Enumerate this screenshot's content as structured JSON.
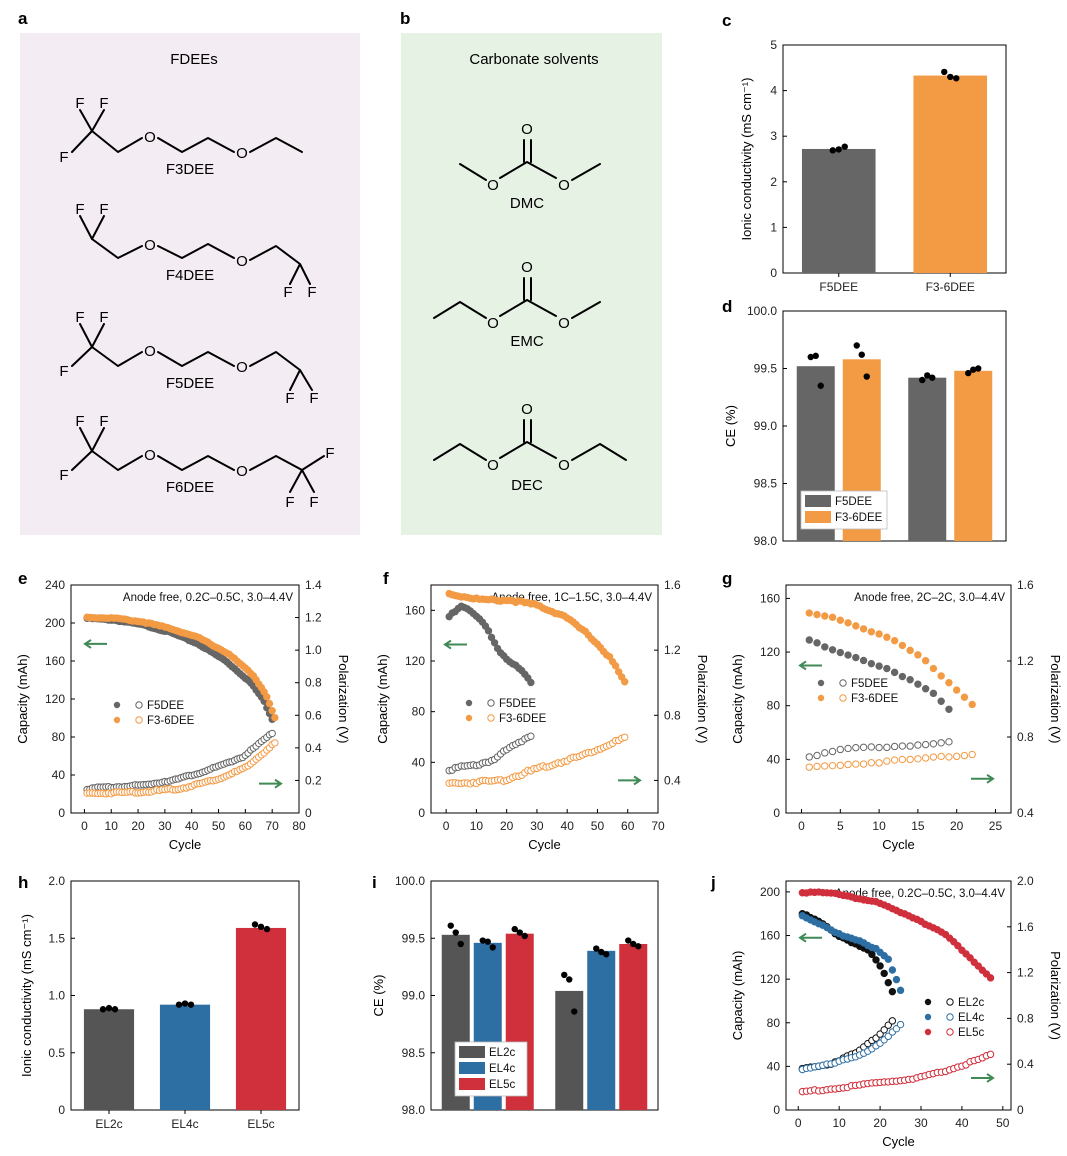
{
  "panels": {
    "a": {
      "letter": "a",
      "title": "FDEEs",
      "molecules": [
        {
          "name": "F3DEE",
          "atoms": [
            "F",
            "F",
            "F",
            "O",
            "O"
          ]
        },
        {
          "name": "F4DEE",
          "atoms": [
            "F",
            "F",
            "O",
            "O",
            "F",
            "F"
          ]
        },
        {
          "name": "F5DEE",
          "atoms": [
            "F",
            "F",
            "F",
            "O",
            "O",
            "F",
            "F"
          ]
        },
        {
          "name": "F6DEE",
          "atoms": [
            "F",
            "F",
            "F",
            "O",
            "O",
            "F",
            "F",
            "F"
          ]
        }
      ]
    },
    "b": {
      "letter": "b",
      "title": "Carbonate solvents",
      "molecules": [
        {
          "name": "DMC",
          "atoms": [
            "O",
            "O",
            "O"
          ]
        },
        {
          "name": "EMC",
          "atoms": [
            "O",
            "O",
            "O"
          ]
        },
        {
          "name": "DEC",
          "atoms": [
            "O",
            "O",
            "O"
          ]
        }
      ]
    }
  },
  "colors": {
    "panel_a_bg": "#f3ecf2",
    "panel_b_bg": "#e6f2e4",
    "gray": "#666666",
    "orange": "#f39a44",
    "blue": "#2e6fa3",
    "red": "#d02f3c",
    "darkgray": "#555555",
    "arrow": "#3f8a55"
  },
  "chart_data": [
    {
      "id": "c",
      "letter": "c",
      "type": "bar",
      "categories": [
        "F5DEE",
        "F3-6DEE"
      ],
      "values": [
        2.72,
        4.33
      ],
      "points": [
        [
          2.69,
          2.71,
          2.77
        ],
        [
          4.41,
          4.3,
          4.27
        ]
      ],
      "ylabel": "Ionic conductivity (mS cm⁻¹)",
      "ylim": [
        0,
        5
      ],
      "yticks": [
        "0",
        "1",
        "2",
        "3",
        "4",
        "5"
      ]
    },
    {
      "id": "d",
      "letter": "d",
      "type": "bar",
      "groups": 2,
      "series": [
        {
          "name": "F5DEE",
          "values": [
            99.52,
            99.42
          ],
          "points": [
            [
              99.6,
              99.61,
              99.35
            ],
            [
              99.4,
              99.44,
              99.42
            ]
          ]
        },
        {
          "name": "F3-6DEE",
          "values": [
            99.58,
            99.48
          ],
          "points": [
            [
              99.7,
              99.62,
              99.43
            ],
            [
              99.46,
              99.49,
              99.5
            ]
          ]
        }
      ],
      "ylabel": "CE (%)",
      "ylim": [
        98.0,
        100.0
      ],
      "yticks": [
        "98.0",
        "98.5",
        "99.0",
        "99.5",
        "100.0"
      ]
    },
    {
      "id": "e",
      "letter": "e",
      "type": "scatter",
      "annotation": "Anode free, 0.2C–0.5C, 3.0–4.4V",
      "xlabel": "Cycle",
      "ylabel": "Capacity (mAh)",
      "y2label": "Polarization (V)",
      "xlim": [
        -5,
        80
      ],
      "ylim": [
        0,
        240
      ],
      "y2lim": [
        0,
        1.4
      ],
      "xticks": [
        "0",
        "10",
        "20",
        "30",
        "40",
        "50",
        "60",
        "70",
        "80"
      ],
      "yticks": [
        "0",
        "40",
        "80",
        "120",
        "160",
        "200",
        "240"
      ],
      "y2ticks": [
        "0",
        "0.2",
        "0.4",
        "0.6",
        "0.8",
        "1.0",
        "1.2",
        "1.4"
      ],
      "legend": [
        "F5DEE",
        "F3-6DEE"
      ],
      "series": [
        {
          "name": "F5DEE capacity",
          "axis": "left",
          "filled": true,
          "x_range": [
            1,
            70
          ],
          "y": [
            [
              0,
              205
            ],
            [
              0.15,
              203
            ],
            [
              0.3,
              198
            ],
            [
              0.45,
              190
            ],
            [
              0.6,
              178
            ],
            [
              0.75,
              160
            ],
            [
              0.88,
              138
            ],
            [
              0.95,
              120
            ],
            [
              1.0,
              99
            ]
          ]
        },
        {
          "name": "F3-6DEE capacity",
          "axis": "left",
          "filled": true,
          "x_range": [
            1,
            71
          ],
          "y": [
            [
              0,
              206
            ],
            [
              0.15,
              205
            ],
            [
              0.3,
              201
            ],
            [
              0.45,
              194
            ],
            [
              0.6,
              184
            ],
            [
              0.75,
              168
            ],
            [
              0.88,
              146
            ],
            [
              0.95,
              126
            ],
            [
              1.0,
              100
            ]
          ]
        },
        {
          "name": "F5DEE polarization",
          "axis": "right",
          "filled": false,
          "x_range": [
            1,
            70
          ],
          "y": [
            [
              0,
              0.15
            ],
            [
              0.3,
              0.17
            ],
            [
              0.5,
              0.21
            ],
            [
              0.7,
              0.28
            ],
            [
              0.85,
              0.35
            ],
            [
              1.0,
              0.49
            ]
          ]
        },
        {
          "name": "F3-6DEE polarization",
          "axis": "right",
          "filled": false,
          "x_range": [
            1,
            71
          ],
          "y": [
            [
              0,
              0.12
            ],
            [
              0.3,
              0.13
            ],
            [
              0.5,
              0.15
            ],
            [
              0.7,
              0.21
            ],
            [
              0.85,
              0.28
            ],
            [
              1.0,
              0.43
            ]
          ]
        }
      ]
    },
    {
      "id": "f",
      "letter": "f",
      "type": "scatter",
      "annotation": "Anode free, 1C–1.5C, 3.0–4.4V",
      "xlabel": "Cycle",
      "ylabel": "Capacity (mAh)",
      "y2label": "Polarization (V)",
      "xlim": [
        -5,
        70
      ],
      "ylim": [
        0,
        180
      ],
      "y2lim": [
        0.2,
        1.6
      ],
      "xticks": [
        "0",
        "10",
        "20",
        "30",
        "40",
        "50",
        "60",
        "70"
      ],
      "yticks": [
        "0",
        "40",
        "80",
        "120",
        "160"
      ],
      "y2ticks": [
        "0.4",
        "0.8",
        "1.2",
        "1.6"
      ],
      "legend": [
        "F5DEE",
        "F3-6DEE"
      ],
      "series": [
        {
          "name": "F5DEE capacity",
          "axis": "left",
          "filled": true,
          "x_range": [
            1,
            28
          ],
          "y": [
            [
              0,
              155
            ],
            [
              0.15,
              163
            ],
            [
              0.3,
              158
            ],
            [
              0.45,
              148
            ],
            [
              0.6,
              128
            ],
            [
              0.75,
              118
            ],
            [
              0.88,
              114
            ],
            [
              1.0,
              104
            ]
          ]
        },
        {
          "name": "F3-6DEE capacity",
          "axis": "left",
          "filled": true,
          "x_range": [
            1,
            59
          ],
          "y": [
            [
              0,
              173
            ],
            [
              0.2,
              168
            ],
            [
              0.35,
              168
            ],
            [
              0.5,
              164
            ],
            [
              0.65,
              156
            ],
            [
              0.8,
              140
            ],
            [
              0.92,
              122
            ],
            [
              1.0,
              103
            ]
          ]
        },
        {
          "name": "F5DEE polarization",
          "axis": "right",
          "filled": false,
          "x_range": [
            1,
            28
          ],
          "y": [
            [
              0,
              0.47
            ],
            [
              0.3,
              0.49
            ],
            [
              0.55,
              0.53
            ],
            [
              0.75,
              0.6
            ],
            [
              1.0,
              0.68
            ]
          ]
        },
        {
          "name": "F3-6DEE polarization",
          "axis": "right",
          "filled": false,
          "x_range": [
            1,
            59
          ],
          "y": [
            [
              0,
              0.38
            ],
            [
              0.3,
              0.4
            ],
            [
              0.5,
              0.47
            ],
            [
              0.75,
              0.55
            ],
            [
              1.0,
              0.66
            ]
          ]
        }
      ]
    },
    {
      "id": "g",
      "letter": "g",
      "type": "scatter",
      "annotation": "Anode free, 2C–2C, 3.0–4.4V",
      "xlabel": "Cycle",
      "ylabel": "Capacity (mAh)",
      "y2label": "Polarization (V)",
      "xlim": [
        -2,
        27
      ],
      "ylim": [
        0,
        170
      ],
      "y2lim": [
        0.4,
        1.6
      ],
      "xticks": [
        "0",
        "5",
        "10",
        "15",
        "20",
        "25"
      ],
      "yticks": [
        "0",
        "40",
        "80",
        "120",
        "160"
      ],
      "y2ticks": [
        "0.4",
        "0.8",
        "1.2",
        "1.6"
      ],
      "legend": [
        "F5DEE",
        "F3-6DEE"
      ],
      "series": [
        {
          "name": "F5DEE capacity",
          "axis": "left",
          "filled": true,
          "x_range": [
            1,
            19
          ],
          "y": [
            [
              0,
              129
            ],
            [
              0.15,
              122
            ],
            [
              0.35,
              115
            ],
            [
              0.55,
              108
            ],
            [
              0.75,
              98
            ],
            [
              0.9,
              88
            ],
            [
              1.0,
              77
            ]
          ]
        },
        {
          "name": "F3-6DEE capacity",
          "axis": "left",
          "filled": true,
          "x_range": [
            1,
            22
          ],
          "y": [
            [
              0,
              149
            ],
            [
              0.15,
              146
            ],
            [
              0.3,
              139
            ],
            [
              0.5,
              130
            ],
            [
              0.7,
              115
            ],
            [
              0.85,
              98
            ],
            [
              1.0,
              81
            ]
          ]
        },
        {
          "name": "F5DEE polarization",
          "axis": "right",
          "filled": false,
          "x_range": [
            1,
            19
          ],
          "y": [
            [
              0,
              0.7
            ],
            [
              0.3,
              0.74
            ],
            [
              0.6,
              0.75
            ],
            [
              1.0,
              0.77
            ]
          ]
        },
        {
          "name": "F3-6DEE polarization",
          "axis": "right",
          "filled": false,
          "x_range": [
            1,
            22
          ],
          "y": [
            [
              0,
              0.64
            ],
            [
              0.3,
              0.66
            ],
            [
              0.6,
              0.68
            ],
            [
              1.0,
              0.71
            ]
          ]
        }
      ]
    },
    {
      "id": "h",
      "letter": "h",
      "type": "bar",
      "categories": [
        "EL2c",
        "EL4c",
        "EL5c"
      ],
      "values": [
        0.88,
        0.92,
        1.59
      ],
      "points": [
        [
          0.88,
          0.89,
          0.88
        ],
        [
          0.92,
          0.93,
          0.92
        ],
        [
          1.62,
          1.6,
          1.58
        ]
      ],
      "colors": [
        "#555555",
        "#2e6fa3",
        "#d02f3c"
      ],
      "ylabel": "Ionic conductivity (mS cm⁻¹)",
      "ylim": [
        0,
        2.0
      ],
      "yticks": [
        "0",
        "0.5",
        "1.0",
        "1.5",
        "2.0"
      ]
    },
    {
      "id": "i",
      "letter": "i",
      "type": "bar",
      "groups": 2,
      "series": [
        {
          "name": "EL2c",
          "values": [
            99.53,
            99.04
          ],
          "points": [
            [
              99.61,
              99.55,
              99.45
            ],
            [
              99.18,
              99.14,
              98.86
            ]
          ]
        },
        {
          "name": "EL4c",
          "values": [
            99.46,
            99.39
          ],
          "points": [
            [
              99.48,
              99.47,
              99.42
            ],
            [
              99.41,
              99.38,
              99.36
            ]
          ]
        },
        {
          "name": "EL5c",
          "values": [
            99.54,
            99.45
          ],
          "points": [
            [
              99.58,
              99.55,
              99.52
            ],
            [
              99.48,
              99.45,
              99.43
            ]
          ]
        }
      ],
      "ylabel": "CE (%)",
      "ylim": [
        98.0,
        100.0
      ],
      "yticks": [
        "98.0",
        "98.5",
        "99.0",
        "99.5",
        "100.0"
      ]
    },
    {
      "id": "j",
      "letter": "j",
      "type": "scatter",
      "annotation": "Anode free, 0.2C–0.5C, 3.0–4.4V",
      "xlabel": "Cycle",
      "ylabel": "Capacity (mAh)",
      "y2label": "Polarization (V)",
      "xlim": [
        -3,
        52
      ],
      "ylim": [
        0,
        210
      ],
      "y2lim": [
        0,
        2.0
      ],
      "xticks": [
        "0",
        "10",
        "20",
        "30",
        "40",
        "50"
      ],
      "yticks": [
        "0",
        "40",
        "80",
        "120",
        "160",
        "200"
      ],
      "y2ticks": [
        "0",
        "0.4",
        "0.8",
        "1.2",
        "1.6",
        "2.0"
      ],
      "legend": [
        "EL2c",
        "EL4c",
        "EL5c"
      ],
      "series": [
        {
          "name": "EL2c capacity",
          "axis": "left",
          "filled": true,
          "x_range": [
            1,
            23
          ],
          "y": [
            [
              0,
              180
            ],
            [
              0.2,
              172
            ],
            [
              0.4,
              160
            ],
            [
              0.6,
              152
            ],
            [
              0.75,
              145
            ],
            [
              0.88,
              130
            ],
            [
              1.0,
              108
            ]
          ]
        },
        {
          "name": "EL4c capacity",
          "axis": "left",
          "filled": true,
          "x_range": [
            1,
            25
          ],
          "y": [
            [
              0,
              178
            ],
            [
              0.2,
              170
            ],
            [
              0.4,
              160
            ],
            [
              0.6,
              154
            ],
            [
              0.75,
              148
            ],
            [
              0.88,
              138
            ],
            [
              1.0,
              109
            ]
          ]
        },
        {
          "name": "EL5c capacity",
          "axis": "left",
          "filled": true,
          "x_range": [
            1,
            47
          ],
          "y": [
            [
              0,
              200
            ],
            [
              0.2,
              198
            ],
            [
              0.4,
              190
            ],
            [
              0.6,
              176
            ],
            [
              0.75,
              162
            ],
            [
              0.88,
              142
            ],
            [
              1.0,
              121
            ]
          ]
        },
        {
          "name": "EL2c polarization",
          "axis": "right",
          "filled": false,
          "x_range": [
            1,
            23
          ],
          "y": [
            [
              0,
              0.36
            ],
            [
              0.3,
              0.4
            ],
            [
              0.6,
              0.5
            ],
            [
              0.8,
              0.62
            ],
            [
              1.0,
              0.78
            ]
          ]
        },
        {
          "name": "EL4c polarization",
          "axis": "right",
          "filled": false,
          "x_range": [
            1,
            25
          ],
          "y": [
            [
              0,
              0.36
            ],
            [
              0.3,
              0.4
            ],
            [
              0.6,
              0.49
            ],
            [
              0.8,
              0.58
            ],
            [
              1.0,
              0.74
            ]
          ]
        },
        {
          "name": "EL5c polarization",
          "axis": "right",
          "filled": false,
          "x_range": [
            1,
            47
          ],
          "y": [
            [
              0,
              0.16
            ],
            [
              0.2,
              0.19
            ],
            [
              0.4,
              0.24
            ],
            [
              0.6,
              0.27
            ],
            [
              0.8,
              0.36
            ],
            [
              1.0,
              0.48
            ]
          ]
        }
      ]
    }
  ]
}
